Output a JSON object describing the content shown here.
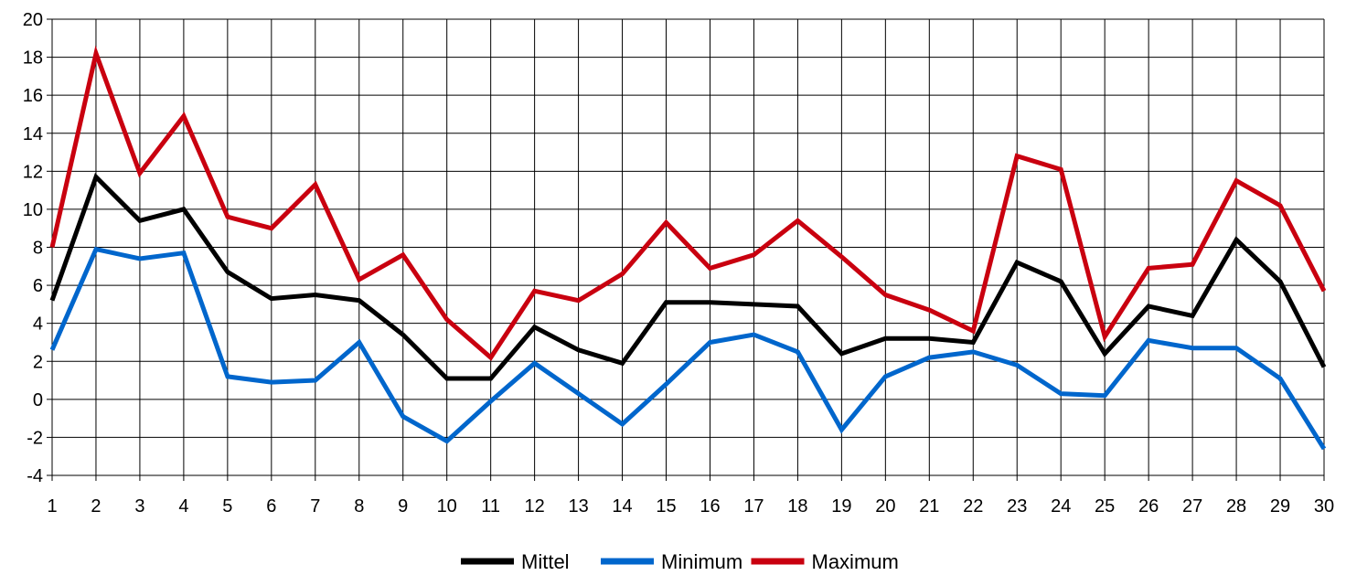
{
  "chart_data": {
    "type": "line",
    "title": "",
    "xlabel": "",
    "ylabel": "",
    "categories": [
      "1",
      "2",
      "3",
      "4",
      "5",
      "6",
      "7",
      "8",
      "9",
      "10",
      "11",
      "12",
      "13",
      "14",
      "15",
      "16",
      "17",
      "18",
      "19",
      "20",
      "21",
      "22",
      "23",
      "24",
      "25",
      "26",
      "27",
      "28",
      "29",
      "30"
    ],
    "ylim": [
      -4,
      20
    ],
    "yticks": [
      -4,
      -2,
      0,
      2,
      4,
      6,
      8,
      10,
      12,
      14,
      16,
      18,
      20
    ],
    "grid": true,
    "legend_position": "bottom",
    "series": [
      {
        "name": "Mittel",
        "color": "#000000",
        "values": [
          5.2,
          11.7,
          9.4,
          10.0,
          6.7,
          5.3,
          5.5,
          5.2,
          3.4,
          1.1,
          1.1,
          3.8,
          2.6,
          1.9,
          5.1,
          5.1,
          5.0,
          4.9,
          2.4,
          3.2,
          3.2,
          3.0,
          7.2,
          6.2,
          2.4,
          4.9,
          4.4,
          8.4,
          6.2,
          1.7
        ]
      },
      {
        "name": "Minimum",
        "color": "#0066cc",
        "values": [
          2.6,
          7.9,
          7.4,
          7.7,
          1.2,
          0.9,
          1.0,
          3.0,
          -0.9,
          -2.2,
          -0.1,
          1.9,
          0.3,
          -1.3,
          0.8,
          3.0,
          3.4,
          2.5,
          -1.6,
          1.2,
          2.2,
          2.5,
          1.8,
          0.3,
          0.2,
          3.1,
          2.7,
          2.7,
          1.1,
          -2.6
        ]
      },
      {
        "name": "Maximum",
        "color": "#c9000f",
        "values": [
          8.0,
          18.2,
          11.9,
          14.9,
          9.6,
          9.0,
          11.3,
          6.3,
          7.6,
          4.2,
          2.2,
          5.7,
          5.2,
          6.6,
          9.3,
          6.9,
          7.6,
          9.4,
          7.5,
          5.5,
          4.7,
          3.6,
          12.8,
          12.1,
          3.3,
          6.9,
          7.1,
          11.5,
          10.2,
          5.7
        ]
      }
    ]
  }
}
